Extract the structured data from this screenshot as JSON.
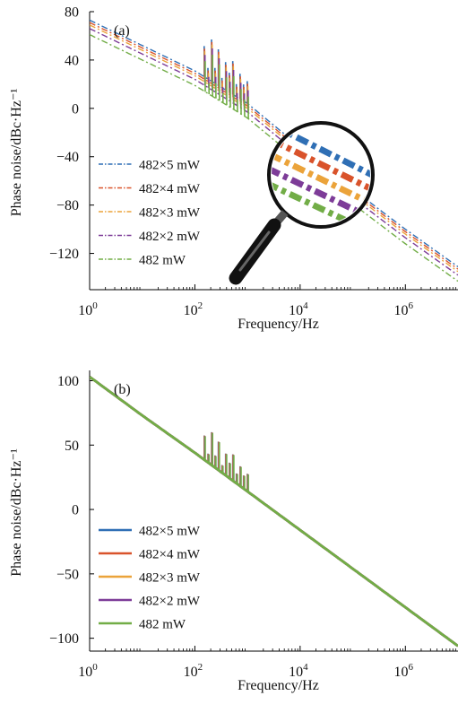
{
  "chart_data": [
    {
      "type": "line",
      "panel_label": "(a)",
      "xlabel": "Frequency/Hz",
      "ylabel": "Phase noise/dBc·Hz⁻¹",
      "xscale": "log",
      "xlim": [
        1,
        10000000
      ],
      "ylim": [
        -150,
        80
      ],
      "x_ticks": [
        {
          "value": 1,
          "base": "10",
          "exp": "0"
        },
        {
          "value": 100,
          "base": "10",
          "exp": "2"
        },
        {
          "value": 10000,
          "base": "10",
          "exp": "4"
        },
        {
          "value": 1000000,
          "base": "10",
          "exp": "6"
        }
      ],
      "y_ticks": [
        {
          "value": 80,
          "label": "80"
        },
        {
          "value": 40,
          "label": "40"
        },
        {
          "value": 0,
          "label": "0"
        },
        {
          "value": -40,
          "label": "−40"
        },
        {
          "value": -80,
          "label": "−80"
        },
        {
          "value": -120,
          "label": "−120"
        }
      ],
      "line_style": "dash-dot",
      "legend_position": "lower-left",
      "inset": "magnifying-glass zoom of the curves near 30 kHz",
      "spur_band_hz": [
        150,
        1000
      ],
      "series": [
        {
          "name": "482×5 mW",
          "color": "#2f6fb5",
          "x": [
            1,
            10,
            100,
            1000,
            10000,
            100000,
            1000000,
            10000000
          ],
          "y": [
            73,
            52,
            31,
            4,
            -32,
            -67,
            -100,
            -131
          ]
        },
        {
          "name": "482×4 mW",
          "color": "#d9532b",
          "x": [
            1,
            10,
            100,
            1000,
            10000,
            100000,
            1000000,
            10000000
          ],
          "y": [
            71,
            50,
            29,
            2,
            -34,
            -69,
            -102,
            -133
          ]
        },
        {
          "name": "482×3 mW",
          "color": "#eba33a",
          "x": [
            1,
            10,
            100,
            1000,
            10000,
            100000,
            1000000,
            10000000
          ],
          "y": [
            69,
            48,
            27,
            0,
            -36,
            -71,
            -104,
            -135
          ]
        },
        {
          "name": "482×2 mW",
          "color": "#7d3c98",
          "x": [
            1,
            10,
            100,
            1000,
            10000,
            100000,
            1000000,
            10000000
          ],
          "y": [
            66,
            45,
            24,
            -3,
            -39,
            -74,
            -107,
            -138
          ]
        },
        {
          "name": "482 mW",
          "color": "#72ad47",
          "x": [
            1,
            10,
            100,
            1000,
            10000,
            100000,
            1000000,
            10000000
          ],
          "y": [
            61,
            40,
            19,
            -8,
            -44,
            -79,
            -112,
            -143
          ]
        }
      ]
    },
    {
      "type": "line",
      "panel_label": "(b)",
      "xlabel": "Frequency/Hz",
      "ylabel": "Phase noise/dBc·Hz⁻¹",
      "xscale": "log",
      "xlim": [
        1,
        10000000
      ],
      "ylim": [
        -110,
        108
      ],
      "x_ticks": [
        {
          "value": 1,
          "base": "10",
          "exp": "0"
        },
        {
          "value": 100,
          "base": "10",
          "exp": "2"
        },
        {
          "value": 10000,
          "base": "10",
          "exp": "4"
        },
        {
          "value": 1000000,
          "base": "10",
          "exp": "6"
        }
      ],
      "y_ticks": [
        {
          "value": 100,
          "label": "100"
        },
        {
          "value": 50,
          "label": "50"
        },
        {
          "value": 0,
          "label": "0"
        },
        {
          "value": -50,
          "label": "−50"
        },
        {
          "value": -100,
          "label": "−100"
        }
      ],
      "line_style": "solid",
      "legend_position": "lower-left",
      "spur_band_hz": [
        150,
        1000
      ],
      "series": [
        {
          "name": "482×5 mW",
          "color": "#2f6fb5",
          "x": [
            1,
            10,
            100,
            1000,
            10000,
            100000,
            1000000,
            10000000
          ],
          "y": [
            103,
            73,
            44,
            14,
            -16,
            -46,
            -76,
            -106
          ]
        },
        {
          "name": "482×4 mW",
          "color": "#d9532b",
          "x": [
            1,
            10,
            100,
            1000,
            10000,
            100000,
            1000000,
            10000000
          ],
          "y": [
            103,
            73,
            44,
            14,
            -16,
            -46,
            -76,
            -106
          ]
        },
        {
          "name": "482×3 mW",
          "color": "#eba33a",
          "x": [
            1,
            10,
            100,
            1000,
            10000,
            100000,
            1000000,
            10000000
          ],
          "y": [
            103,
            73,
            44,
            14,
            -16,
            -46,
            -76,
            -106
          ]
        },
        {
          "name": "482×2 mW",
          "color": "#7d3c98",
          "x": [
            1,
            10,
            100,
            1000,
            10000,
            100000,
            1000000,
            10000000
          ],
          "y": [
            103,
            73,
            44,
            14,
            -16,
            -46,
            -76,
            -106
          ]
        },
        {
          "name": "482 mW",
          "color": "#72ad47",
          "x": [
            1,
            10,
            100,
            1000,
            10000,
            100000,
            1000000,
            10000000
          ],
          "y": [
            103,
            73,
            44,
            14,
            -16,
            -46,
            -76,
            -106
          ]
        }
      ]
    }
  ]
}
